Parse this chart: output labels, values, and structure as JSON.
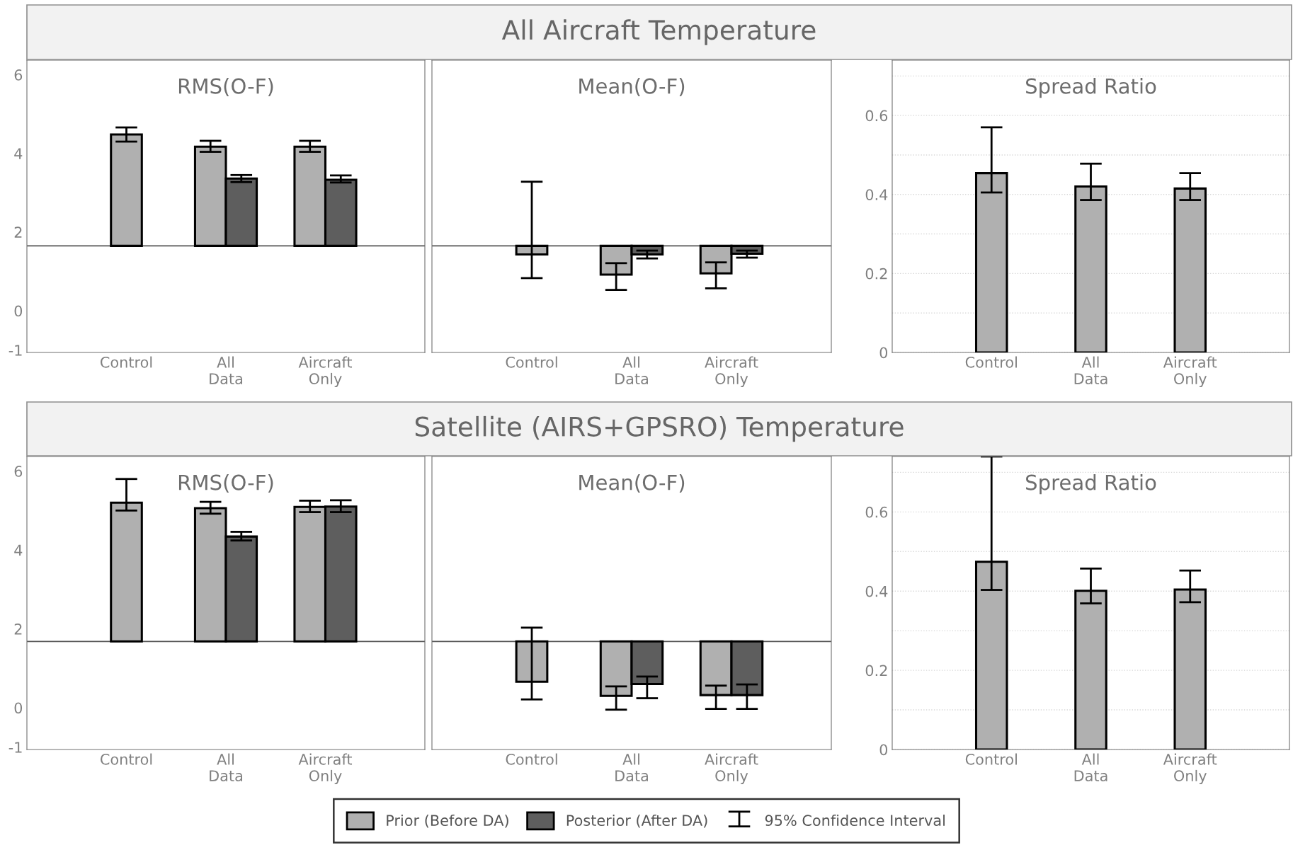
{
  "chart_data": [
    {
      "type": "bar",
      "title": "RMS(O-F)",
      "categories": [
        "Control",
        "All\nData",
        "Aircraft\nOnly"
      ],
      "ylim": [
        -1.06,
        6.37
      ],
      "yticks": [
        -1,
        0,
        2,
        4,
        6
      ],
      "grid": false,
      "legend": "bottom",
      "annotations": [
        "95% Confidence Interval"
      ],
      "ref_lines": [
        {
          "axis": "y",
          "value": 1.65,
          "color": "#555555"
        }
      ],
      "series": [
        {
          "name": "Prior (Before DA)",
          "color": "#b0b0b0",
          "base": [
            1.65,
            1.65,
            1.65
          ],
          "values": [
            2.83,
            2.52,
            2.52
          ],
          "errors": [
            [
              4.3,
              4.66
            ],
            [
              4.04,
              4.32
            ],
            [
              4.04,
              4.32
            ]
          ]
        },
        {
          "name": "Posterior (After DA)",
          "color": "#5e5e5e",
          "base": [
            null,
            1.65,
            1.65
          ],
          "values": [
            null,
            1.71,
            1.68
          ],
          "errors": [
            null,
            [
              3.27,
              3.45
            ],
            [
              3.26,
              3.44
            ]
          ]
        }
      ]
    },
    {
      "type": "bar",
      "subtitle": "All Aircraft Temperature",
      "title": "Mean(O-F)",
      "categories": [
        "Control",
        "All\nData",
        "Aircraft\nOnly"
      ],
      "ylim": [
        -1.06,
        6.37
      ],
      "tick_labels": "x",
      "grid": false,
      "ref_lines": [
        {
          "axis": "y",
          "value": 1.65,
          "color": "#555555"
        }
      ],
      "series": [
        {
          "color": "#b0b0b0",
          "base": [
            1.65,
            1.65,
            1.65
          ],
          "values": [
            -0.22,
            -0.73,
            -0.7
          ],
          "errors": [
            [
              0.83,
              3.28
            ],
            [
              0.53,
              1.21
            ],
            [
              0.57,
              1.23
            ]
          ]
        },
        {
          "color": "#5e5e5e",
          "base": [
            null,
            1.65,
            1.65
          ],
          "values": [
            null,
            -0.22,
            -0.2
          ],
          "errors": [
            null,
            [
              1.33,
              1.53
            ],
            [
              1.35,
              1.53
            ]
          ]
        }
      ]
    },
    {
      "type": "bar",
      "title": "Spread Ratio",
      "categories": [
        "Control",
        "All\nData",
        "Aircraft\nOnly"
      ],
      "ylim": [
        0,
        0.74
      ],
      "yticks": [
        0,
        {
          "value": 0.1,
          "label": null
        },
        0.2,
        {
          "value": 0.3,
          "label": null
        },
        0.4,
        {
          "value": 0.5,
          "label": null
        },
        0.6,
        {
          "value": 0.7,
          "label": null
        }
      ],
      "grid": "y",
      "series": [
        {
          "color": "#b0b0b0",
          "values": [
            0.454,
            0.42,
            0.415
          ],
          "errors": [
            [
              0.405,
              0.57
            ],
            [
              0.386,
              0.478
            ],
            [
              0.386,
              0.454
            ]
          ]
        }
      ]
    },
    {
      "type": "bar",
      "title": "RMS(O-F)",
      "categories": [
        "Control",
        "All\nData",
        "Aircraft\nOnly"
      ],
      "ylim": [
        -1.06,
        6.37
      ],
      "yticks": [
        -1,
        0,
        2,
        4,
        6
      ],
      "grid": false,
      "ref_lines": [
        {
          "axis": "y",
          "value": 1.68,
          "color": "#555555"
        }
      ],
      "series": [
        {
          "color": "#b0b0b0",
          "base": [
            1.68,
            1.68,
            1.68
          ],
          "values": [
            3.52,
            3.38,
            3.41
          ],
          "errors": [
            [
              5.0,
              5.8
            ],
            [
              4.92,
              5.22
            ],
            [
              4.96,
              5.25
            ]
          ]
        },
        {
          "color": "#5e5e5e",
          "base": [
            null,
            1.68,
            1.68
          ],
          "values": [
            null,
            2.66,
            3.42
          ],
          "errors": [
            null,
            [
              4.24,
              4.46
            ],
            [
              4.96,
              5.26
            ]
          ]
        }
      ]
    },
    {
      "type": "bar",
      "subtitle": "Satellite (AIRS+GPSRO) Temperature",
      "title": "Mean(O-F)",
      "categories": [
        "Control",
        "All\nData",
        "Aircraft\nOnly"
      ],
      "ylim": [
        -1.06,
        6.37
      ],
      "tick_labels": "x",
      "grid": false,
      "ref_lines": [
        {
          "axis": "y",
          "value": 1.68,
          "color": "#555555"
        }
      ],
      "series": [
        {
          "color": "#b0b0b0",
          "base": [
            1.68,
            1.68,
            1.68
          ],
          "values": [
            -1.02,
            -1.38,
            -1.36
          ],
          "errors": [
            [
              0.21,
              2.03
            ],
            [
              -0.05,
              0.54
            ],
            [
              -0.03,
              0.56
            ]
          ]
        },
        {
          "color": "#5e5e5e",
          "base": [
            null,
            1.68,
            1.68
          ],
          "values": [
            null,
            -1.08,
            -1.36
          ],
          "errors": [
            null,
            [
              0.24,
              0.79
            ],
            [
              -0.03,
              0.59
            ]
          ]
        }
      ]
    },
    {
      "type": "bar",
      "title": "Spread Ratio",
      "categories": [
        "Control",
        "All\nData",
        "Aircraft\nOnly"
      ],
      "ylim": [
        0,
        0.74
      ],
      "yticks": [
        0,
        {
          "value": 0.1,
          "label": null
        },
        0.2,
        {
          "value": 0.3,
          "label": null
        },
        0.4,
        {
          "value": 0.5,
          "label": null
        },
        0.6,
        {
          "value": 0.7,
          "label": null
        }
      ],
      "grid": "y",
      "series": [
        {
          "color": "#b0b0b0",
          "values": [
            0.474,
            0.401,
            0.404
          ],
          "errors": [
            [
              0.403,
              0.74
            ],
            [
              0.369,
              0.457
            ],
            [
              0.372,
              0.452
            ]
          ]
        }
      ]
    }
  ]
}
